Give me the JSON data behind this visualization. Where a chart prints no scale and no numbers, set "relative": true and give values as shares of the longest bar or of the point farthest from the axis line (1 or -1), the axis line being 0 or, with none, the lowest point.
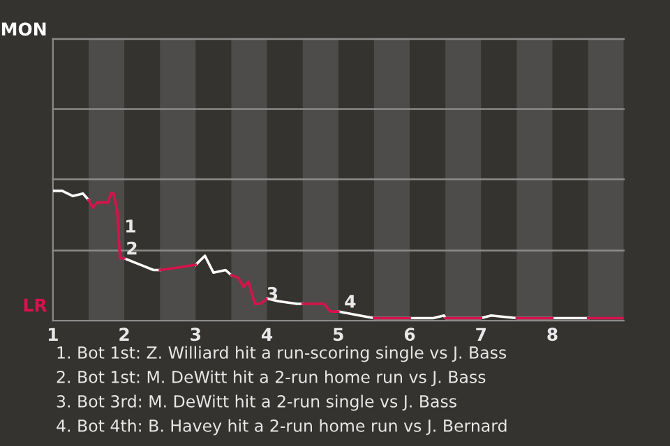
{
  "chart_data": {
    "type": "line",
    "relative": true,
    "x": [
      1.02,
      1.13,
      1.28,
      1.42,
      1.5,
      1.56,
      1.62,
      1.77,
      1.81,
      1.85,
      1.9,
      1.94,
      2.0,
      2.23,
      2.41,
      2.5,
      2.76,
      3.0,
      3.13,
      3.25,
      3.42,
      3.5,
      3.6,
      3.67,
      3.74,
      3.83,
      3.91,
      4.0,
      4.16,
      4.42,
      4.5,
      4.68,
      4.8,
      4.89,
      5.0,
      5.3,
      5.5,
      6.0,
      6.33,
      6.48,
      6.5,
      7.0,
      7.14,
      7.5,
      8.0,
      8.07,
      8.19,
      8.5,
      8.99
    ],
    "series": [
      {
        "color": "#ffffff",
        "values": [
          1,
          1,
          0.96,
          0.98,
          0.93,
          null,
          null,
          null,
          null,
          null,
          null,
          null,
          0.48,
          0.43,
          0.39,
          0.39,
          null,
          0.43,
          0.5,
          0.37,
          0.39,
          0.35,
          null,
          null,
          null,
          null,
          null,
          0.17,
          0.15,
          0.13,
          0.13,
          null,
          null,
          null,
          0.07,
          0.04,
          0.02,
          0.02,
          0.02,
          0.04,
          0.02,
          0.02,
          0.04,
          0.02,
          0.02,
          0.02,
          0.02,
          0.02,
          null
        ]
      },
      {
        "color": "#d6134b",
        "values": [
          null,
          null,
          null,
          null,
          0.93,
          0.87,
          0.91,
          0.91,
          0.98,
          0.98,
          0.85,
          0.48,
          0.48,
          null,
          null,
          0.39,
          0.41,
          0.43,
          null,
          null,
          null,
          0.35,
          0.33,
          0.26,
          0.3,
          0.13,
          0.13,
          0.17,
          null,
          null,
          0.13,
          0.13,
          0.13,
          0.07,
          0.07,
          null,
          0.02,
          0.02,
          null,
          null,
          0.02,
          0.02,
          null,
          0.02,
          0.02,
          null,
          null,
          0.02,
          0.02
        ]
      }
    ],
    "xlim": [
      1,
      9
    ],
    "xticks": [
      1,
      2,
      3,
      4,
      5,
      6,
      7,
      8
    ],
    "ref_lines": [
      {
        "axis": "y",
        "value": 0.54,
        "color": "#8a8a8a"
      },
      {
        "axis": "y",
        "value": 1.09,
        "color": "#8a8a8a"
      },
      {
        "axis": "y",
        "value": 1.63,
        "color": "#8a8a8a"
      },
      {
        "axis": "y",
        "value": 2.17,
        "color": "#8a8a8a"
      }
    ],
    "bands": [
      {
        "axis": "x",
        "from": 1.5,
        "to": 2,
        "color": "#4d4c4a"
      },
      {
        "axis": "x",
        "from": 2.5,
        "to": 3,
        "color": "#4d4c4a"
      },
      {
        "axis": "x",
        "from": 3.5,
        "to": 4,
        "color": "#4d4c4a"
      },
      {
        "axis": "x",
        "from": 4.5,
        "to": 5,
        "color": "#4d4c4a"
      },
      {
        "axis": "x",
        "from": 5.5,
        "to": 6,
        "color": "#4d4c4a"
      },
      {
        "axis": "x",
        "from": 6.5,
        "to": 7,
        "color": "#4d4c4a"
      },
      {
        "axis": "x",
        "from": 7.5,
        "to": 8,
        "color": "#4d4c4a"
      },
      {
        "axis": "x",
        "from": 8.5,
        "to": 9,
        "color": "#4d4c4a"
      }
    ],
    "annotations": [
      {
        "text": "1",
        "x": 1.92,
        "y": 0.65
      },
      {
        "text": "2",
        "x": 1.94,
        "y": 0.48
      },
      {
        "text": "3",
        "x": 3.91,
        "y": 0.13
      },
      {
        "text": "4",
        "x": 5.0,
        "y": 0.07
      },
      "MON",
      "LR",
      "1. Bot 1st: Z. Williard hit a run-scoring single vs J. Bass",
      "2. Bot 1st: M. DeWitt hit a 2-run home run vs J. Bass",
      "3. Bot 3rd: M. DeWitt hit a 2-run single vs J. Bass",
      "4. Bot 4th: B. Havey hit a 2-run home run vs J. Bernard"
    ],
    "marker": "none",
    "line_style": "solid"
  }
}
